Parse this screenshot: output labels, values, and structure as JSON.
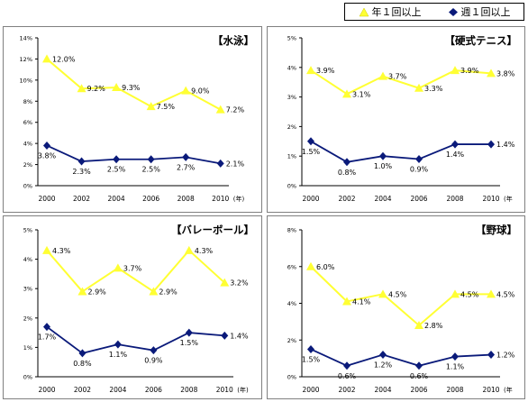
{
  "legend": [
    {
      "name": "年１回以上",
      "color": "#ffff33",
      "marker": "triangle"
    },
    {
      "name": "週１回以上",
      "color": "#0a1a7a",
      "marker": "diamond"
    }
  ],
  "chart_data": [
    {
      "type": "line",
      "title": "【水泳】",
      "x": [
        "2000",
        "2002",
        "2004",
        "2006",
        "2008",
        "2010"
      ],
      "x_unit_label": "(年)",
      "yticks": [
        "0%",
        "2%",
        "4%",
        "6%",
        "8%",
        "10%",
        "12%",
        "14%"
      ],
      "ylim": [
        0,
        14
      ],
      "series": [
        {
          "name": "年１回以上",
          "values": [
            12.0,
            9.2,
            9.3,
            7.5,
            9.0,
            7.2
          ],
          "labels": [
            "12.0%",
            "9.2%",
            "9.3%",
            "7.5%",
            "9.0%",
            "7.2%"
          ]
        },
        {
          "name": "週１回以上",
          "values": [
            3.8,
            2.3,
            2.5,
            2.5,
            2.7,
            2.1
          ],
          "labels": [
            "3.8%",
            "2.3%",
            "2.5%",
            "2.5%",
            "2.7%",
            "2.1%"
          ]
        }
      ]
    },
    {
      "type": "line",
      "title": "【硬式テニス】",
      "x": [
        "2000",
        "2002",
        "2004",
        "2006",
        "2008",
        "2010"
      ],
      "x_unit_label": "(年",
      "yticks": [
        "0%",
        "1%",
        "2%",
        "3%",
        "4%",
        "5%"
      ],
      "ylim": [
        0,
        5
      ],
      "series": [
        {
          "name": "年１回以上",
          "values": [
            3.9,
            3.1,
            3.7,
            3.3,
            3.9,
            3.8
          ],
          "labels": [
            "3.9%",
            "3.1%",
            "3.7%",
            "3.3%",
            "3.9%",
            "3.8%"
          ]
        },
        {
          "name": "週１回以上",
          "values": [
            1.5,
            0.8,
            1.0,
            0.9,
            1.4,
            1.4
          ],
          "labels": [
            "1.5%",
            "0.8%",
            "1.0%",
            "0.9%",
            "1.4%",
            "1.4%"
          ]
        }
      ]
    },
    {
      "type": "line",
      "title": "【バレーボール】",
      "x": [
        "2000",
        "2002",
        "2004",
        "2006",
        "2008",
        "2010"
      ],
      "x_unit_label": "(年)",
      "yticks": [
        "0%",
        "1%",
        "2%",
        "3%",
        "4%",
        "5%"
      ],
      "ylim": [
        0,
        5
      ],
      "series": [
        {
          "name": "年１回以上",
          "values": [
            4.3,
            2.9,
            3.7,
            2.9,
            4.3,
            3.2
          ],
          "labels": [
            "4.3%",
            "2.9%",
            "3.7%",
            "2.9%",
            "4.3%",
            "3.2%"
          ]
        },
        {
          "name": "週１回以上",
          "values": [
            1.7,
            0.8,
            1.1,
            0.9,
            1.5,
            1.4
          ],
          "labels": [
            "1.7%",
            "0.8%",
            "1.1%",
            "0.9%",
            "1.5%",
            "1.4%"
          ]
        }
      ]
    },
    {
      "type": "line",
      "title": "【野球】",
      "x": [
        "2000",
        "2002",
        "2004",
        "2006",
        "2008",
        "2010"
      ],
      "x_unit_label": "(年",
      "yticks": [
        "0%",
        "2%",
        "4%",
        "6%",
        "8%"
      ],
      "ylim": [
        0,
        8
      ],
      "series": [
        {
          "name": "年１回以上",
          "values": [
            6.0,
            4.1,
            4.5,
            2.8,
            4.5,
            4.5
          ],
          "labels": [
            "6.0%",
            "4.1%",
            "4.5%",
            "2.8%",
            "4.5%",
            "4.5%"
          ]
        },
        {
          "name": "週１回以上",
          "values": [
            1.5,
            0.6,
            1.2,
            0.6,
            1.1,
            1.2
          ],
          "labels": [
            "1.5%",
            "0.6%",
            "1.2%",
            "0.6%",
            "1.1%",
            "1.2%"
          ]
        }
      ]
    }
  ]
}
